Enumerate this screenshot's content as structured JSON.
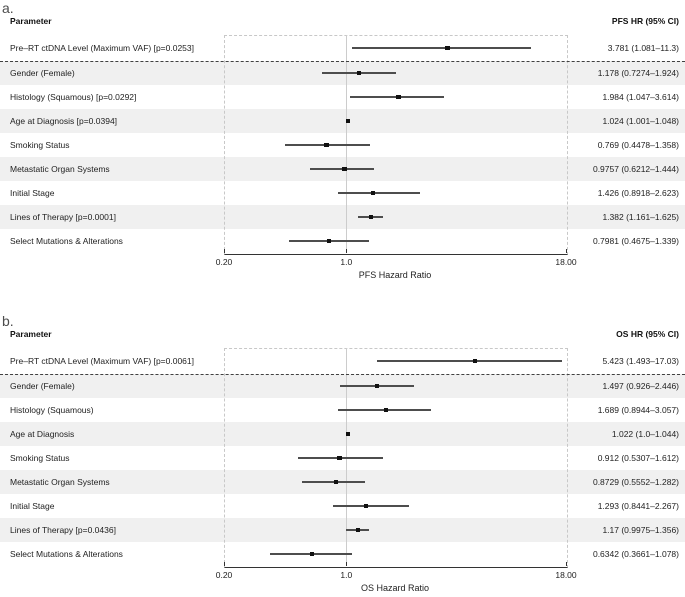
{
  "colors": {
    "row_band": "#f0f0f0",
    "plot_box_border": "#c8c8c8",
    "reference_line": "#cccccc",
    "axis_line": "#333333",
    "ci_line": "#4d4d4d",
    "marker": "#111111",
    "separator_line": "#404040",
    "text": "#222222",
    "panel_letter": "#4d4d4d"
  },
  "chart_data": [
    {
      "type": "forest",
      "panel_label": "a.",
      "column_headers": {
        "left": "Parameter",
        "right": "PFS HR (95% CI)"
      },
      "xlabel": "PFS Hazard Ratio",
      "x_scale": "log",
      "xlim": [
        0.2,
        18
      ],
      "reference_line": 1.0,
      "x_ticks": [
        {
          "value": 0.2,
          "label": "0.20"
        },
        {
          "value": 1.0,
          "label": "1.0"
        },
        {
          "value": 18.0,
          "label": "18.00"
        }
      ],
      "rows": [
        {
          "parameter": "Pre–RT ctDNA Level (Maximum VAF) [p=0.0253]",
          "hr": 3.781,
          "ci_low": 1.081,
          "ci_high": 11.3,
          "hr_text": "3.781 (1.081–11.3)",
          "shaded": false,
          "separated_below": true
        },
        {
          "parameter": "Gender (Female)",
          "hr": 1.178,
          "ci_low": 0.7274,
          "ci_high": 1.924,
          "hr_text": "1.178 (0.7274–1.924)",
          "shaded": true,
          "separated_below": false
        },
        {
          "parameter": "Histology (Squamous) [p=0.0292]",
          "hr": 1.984,
          "ci_low": 1.047,
          "ci_high": 3.614,
          "hr_text": "1.984 (1.047–3.614)",
          "shaded": false,
          "separated_below": false
        },
        {
          "parameter": "Age at Diagnosis [p=0.0394]",
          "hr": 1.024,
          "ci_low": 1.001,
          "ci_high": 1.048,
          "hr_text": "1.024 (1.001–1.048)",
          "shaded": true,
          "separated_below": false
        },
        {
          "parameter": "Smoking Status",
          "hr": 0.769,
          "ci_low": 0.4478,
          "ci_high": 1.358,
          "hr_text": "0.769 (0.4478–1.358)",
          "shaded": false,
          "separated_below": false
        },
        {
          "parameter": "Metastatic Organ Systems",
          "hr": 0.9757,
          "ci_low": 0.6212,
          "ci_high": 1.444,
          "hr_text": "0.9757 (0.6212–1.444)",
          "shaded": true,
          "separated_below": false
        },
        {
          "parameter": "Initial Stage",
          "hr": 1.426,
          "ci_low": 0.8918,
          "ci_high": 2.623,
          "hr_text": "1.426 (0.8918–2.623)",
          "shaded": false,
          "separated_below": false
        },
        {
          "parameter": "Lines of Therapy [p=0.0001]",
          "hr": 1.382,
          "ci_low": 1.161,
          "ci_high": 1.625,
          "hr_text": "1.382 (1.161–1.625)",
          "shaded": true,
          "separated_below": false
        },
        {
          "parameter": "Select Mutations & Alterations",
          "hr": 0.7981,
          "ci_low": 0.4675,
          "ci_high": 1.339,
          "hr_text": "0.7981 (0.4675–1.339)",
          "shaded": false,
          "separated_below": false
        }
      ]
    },
    {
      "type": "forest",
      "panel_label": "b.",
      "column_headers": {
        "left": "Parameter",
        "right": "OS HR (95% CI)"
      },
      "xlabel": "OS Hazard Ratio",
      "x_scale": "log",
      "xlim": [
        0.2,
        18
      ],
      "reference_line": 1.0,
      "x_ticks": [
        {
          "value": 0.2,
          "label": "0.20"
        },
        {
          "value": 1.0,
          "label": "1.0"
        },
        {
          "value": 18.0,
          "label": "18.00"
        }
      ],
      "rows": [
        {
          "parameter": "Pre–RT ctDNA Level (Maximum VAF) [p=0.0061]",
          "hr": 5.423,
          "ci_low": 1.493,
          "ci_high": 17.03,
          "hr_text": "5.423 (1.493–17.03)",
          "shaded": false,
          "separated_below": true
        },
        {
          "parameter": "Gender (Female)",
          "hr": 1.497,
          "ci_low": 0.926,
          "ci_high": 2.446,
          "hr_text": "1.497 (0.926–2.446)",
          "shaded": true,
          "separated_below": false
        },
        {
          "parameter": "Histology (Squamous)",
          "hr": 1.689,
          "ci_low": 0.8944,
          "ci_high": 3.057,
          "hr_text": "1.689 (0.8944–3.057)",
          "shaded": false,
          "separated_below": false
        },
        {
          "parameter": "Age at Diagnosis",
          "hr": 1.022,
          "ci_low": 1.0,
          "ci_high": 1.044,
          "hr_text": "1.022 (1.0–1.044)",
          "shaded": true,
          "separated_below": false
        },
        {
          "parameter": "Smoking Status",
          "hr": 0.912,
          "ci_low": 0.5307,
          "ci_high": 1.612,
          "hr_text": "0.912 (0.5307–1.612)",
          "shaded": false,
          "separated_below": false
        },
        {
          "parameter": "Metastatic Organ Systems",
          "hr": 0.8729,
          "ci_low": 0.5552,
          "ci_high": 1.282,
          "hr_text": "0.8729 (0.5552–1.282)",
          "shaded": true,
          "separated_below": false
        },
        {
          "parameter": "Initial Stage",
          "hr": 1.293,
          "ci_low": 0.8441,
          "ci_high": 2.267,
          "hr_text": "1.293 (0.8441–2.267)",
          "shaded": false,
          "separated_below": false
        },
        {
          "parameter": "Lines of Therapy [p=0.0436]",
          "hr": 1.17,
          "ci_low": 0.9975,
          "ci_high": 1.356,
          "hr_text": "1.17 (0.9975–1.356)",
          "shaded": true,
          "separated_below": false
        },
        {
          "parameter": "Select Mutations & Alterations",
          "hr": 0.6342,
          "ci_low": 0.3661,
          "ci_high": 1.078,
          "hr_text": "0.6342 (0.3661–1.078)",
          "shaded": false,
          "separated_below": false
        }
      ]
    }
  ]
}
